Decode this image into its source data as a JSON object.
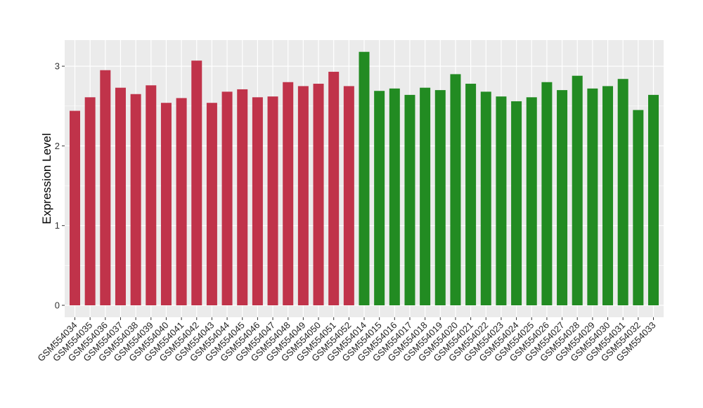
{
  "chart_data": {
    "type": "bar",
    "title": "",
    "xlabel": "",
    "ylabel": "Expression Level",
    "ylim": [
      0,
      3.3
    ],
    "y_ticks": [
      "0",
      "1",
      "2",
      "3"
    ],
    "grid": true,
    "panel_background": "#EBEBEB",
    "group_colors": {
      "group1": "#C0334A",
      "group2": "#228B22"
    },
    "categories": [
      "GSM554034",
      "GSM554035",
      "GSM554036",
      "GSM554037",
      "GSM554038",
      "GSM554039",
      "GSM554040",
      "GSM554041",
      "GSM554042",
      "GSM554043",
      "GSM554044",
      "GSM554045",
      "GSM554046",
      "GSM554047",
      "GSM554048",
      "GSM554049",
      "GSM554050",
      "GSM554051",
      "GSM554052",
      "GSM554014",
      "GSM554015",
      "GSM554016",
      "GSM554017",
      "GSM554018",
      "GSM554019",
      "GSM554020",
      "GSM554021",
      "GSM554022",
      "GSM554023",
      "GSM554024",
      "GSM554025",
      "GSM554026",
      "GSM554027",
      "GSM554028",
      "GSM554029",
      "GSM554030",
      "GSM554031",
      "GSM554032",
      "GSM554033"
    ],
    "values": [
      2.44,
      2.61,
      2.95,
      2.73,
      2.65,
      2.76,
      2.54,
      2.6,
      3.07,
      2.54,
      2.68,
      2.71,
      2.61,
      2.62,
      2.8,
      2.75,
      2.78,
      2.93,
      2.75,
      3.18,
      2.69,
      2.72,
      2.64,
      2.73,
      2.7,
      2.9,
      2.78,
      2.68,
      2.62,
      2.56,
      2.61,
      2.8,
      2.7,
      2.88,
      2.72,
      2.75,
      2.84,
      2.45,
      2.64
    ],
    "groups": [
      "group1",
      "group1",
      "group1",
      "group1",
      "group1",
      "group1",
      "group1",
      "group1",
      "group1",
      "group1",
      "group1",
      "group1",
      "group1",
      "group1",
      "group1",
      "group1",
      "group1",
      "group1",
      "group1",
      "group2",
      "group2",
      "group2",
      "group2",
      "group2",
      "group2",
      "group2",
      "group2",
      "group2",
      "group2",
      "group2",
      "group2",
      "group2",
      "group2",
      "group2",
      "group2",
      "group2",
      "group2",
      "group2",
      "group2"
    ]
  }
}
